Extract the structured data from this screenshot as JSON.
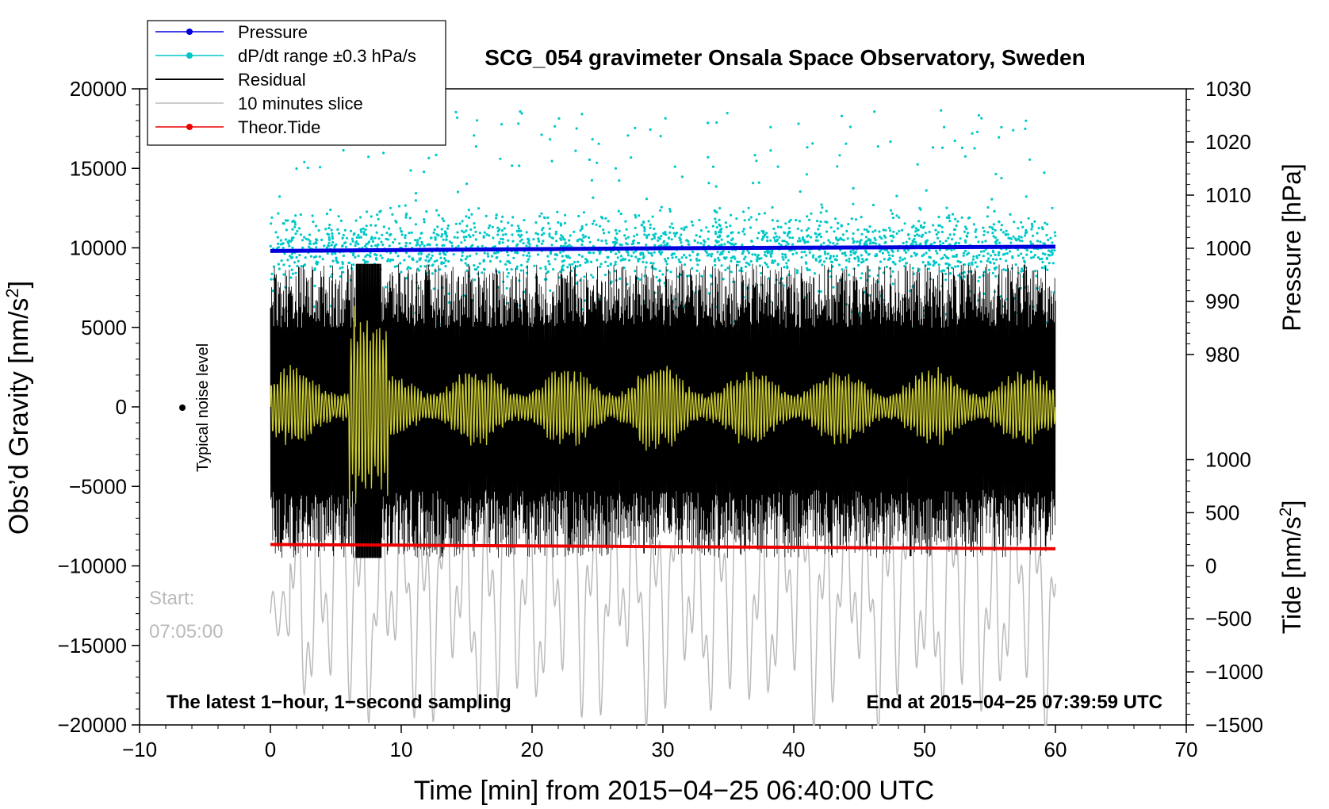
{
  "chart_data": {
    "type": "line",
    "title": "SCG_054 gravimeter Onsala Space Observatory, Sweden",
    "xlabel": "Time [min] from 2015−04−25 06:40:00 UTC",
    "ylabel": "Obs'd Gravity [nm/s²]",
    "ylabel_right_top": "Pressure [hPa]",
    "ylabel_right_bottom": "Tide [nm/s²]",
    "xlim": [
      -10,
      70
    ],
    "ylim": [
      -20000,
      20000
    ],
    "pressure_axis_range": [
      980,
      1030
    ],
    "tide_axis_range": [
      -1500,
      1000
    ],
    "x_ticks": [
      "−10",
      "0",
      "10",
      "20",
      "30",
      "40",
      "50",
      "60",
      "70"
    ],
    "y_ticks": [
      "−20000",
      "−15000",
      "−10000",
      "−5000",
      "0",
      "5000",
      "10000",
      "15000",
      "20000"
    ],
    "pressure_ticks": [
      "980",
      "990",
      "1000",
      "1010",
      "1020",
      "1030"
    ],
    "tide_ticks": [
      "−1500",
      "−1000",
      "−500",
      "0",
      "500",
      "1000"
    ],
    "legend": [
      {
        "label": "Pressure",
        "color": "#0000dd",
        "marker": true
      },
      {
        "label": "dP/dt range ±0.3 hPa/s",
        "color": "#00c8c8",
        "marker": true
      },
      {
        "label": "Residual",
        "color": "#000000",
        "marker": false
      },
      {
        "label": "10 minutes slice",
        "color": "#bbbbbb",
        "marker": false
      },
      {
        "label": "Theor.Tide",
        "color": "#ee0000",
        "marker": true
      }
    ],
    "series": [
      {
        "name": "Pressure",
        "units": "hPa",
        "x": [
          0,
          30,
          60
        ],
        "values": [
          999.5,
          1000.0,
          1000.3
        ]
      },
      {
        "name": "Theor.Tide",
        "units": "nm/s²",
        "x": [
          0,
          30,
          60
        ],
        "values": [
          200,
          180,
          160
        ]
      },
      {
        "name": "Residual",
        "units": "nm/s²",
        "range": [
          -9500,
          9000
        ]
      },
      {
        "name": "dP/dt",
        "units": "hPa",
        "range": [
          985,
          1026
        ]
      },
      {
        "name": "10 minutes slice",
        "units": "nm/s²",
        "range": [
          -20000,
          -3000
        ]
      }
    ],
    "annotations": {
      "noise_label": "Typical noise level",
      "start_label": "Start:",
      "start_time": "07:05:00",
      "bottom_left": "The latest 1−hour, 1−second sampling",
      "bottom_right": "End at 2015−04−25 07:39:59 UTC"
    }
  }
}
